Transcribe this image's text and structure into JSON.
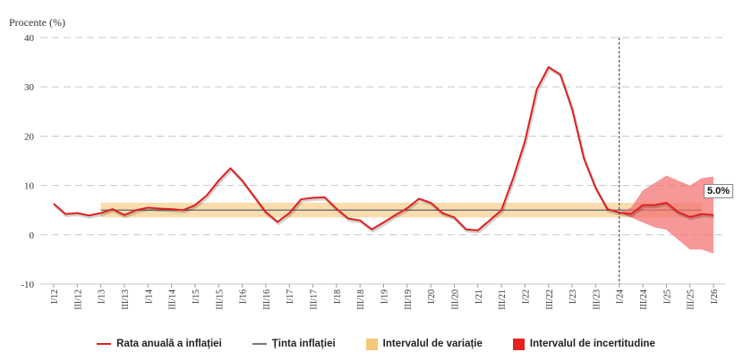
{
  "chart_data": {
    "type": "line",
    "ylabel": "Procente (%)",
    "ylim": [
      -10,
      40
    ],
    "yticks": [
      -10,
      0,
      10,
      20,
      30,
      40
    ],
    "grid": true,
    "legend_position": "bottom",
    "x_labels": [
      "I/12",
      "III/12",
      "I/13",
      "III/13",
      "I/14",
      "III/14",
      "I/15",
      "III/15",
      "I/16",
      "III/16",
      "I/17",
      "III/17",
      "I/18",
      "III/18",
      "I/19",
      "III/19",
      "I/20",
      "III/20",
      "I/21",
      "III/21",
      "I/22",
      "III/22",
      "I/23",
      "III/23",
      "I/24",
      "III/24",
      "I/25",
      "III/25",
      "I/26"
    ],
    "forecast_start": "I/24",
    "series": [
      {
        "name": "Rata anuală a inflației",
        "color": "#e02020",
        "x": [
          "I/12",
          "II/12",
          "III/12",
          "IV/12",
          "I/13",
          "II/13",
          "III/13",
          "IV/13",
          "I/14",
          "II/14",
          "III/14",
          "IV/14",
          "I/15",
          "II/15",
          "III/15",
          "IV/15",
          "I/16",
          "II/16",
          "III/16",
          "IV/16",
          "I/17",
          "II/17",
          "III/17",
          "IV/17",
          "I/18",
          "II/18",
          "III/18",
          "IV/18",
          "I/19",
          "II/19",
          "III/19",
          "IV/19",
          "I/20",
          "II/20",
          "III/20",
          "IV/20",
          "I/21",
          "II/21",
          "III/21",
          "IV/21",
          "I/22",
          "II/22",
          "III/22",
          "IV/22",
          "I/23",
          "II/23",
          "III/23",
          "IV/23",
          "I/24",
          "II/24",
          "III/24",
          "IV/24",
          "I/25",
          "II/25",
          "III/25",
          "IV/25",
          "I/26"
        ],
        "values": [
          6.3,
          4.2,
          4.4,
          3.9,
          4.4,
          5.2,
          4.0,
          5.0,
          5.5,
          5.3,
          5.2,
          5.0,
          6.0,
          8.0,
          11.0,
          13.5,
          11.0,
          7.8,
          4.6,
          2.6,
          4.4,
          7.2,
          7.5,
          7.6,
          5.3,
          3.3,
          2.9,
          1.1,
          2.5,
          4.0,
          5.4,
          7.3,
          6.5,
          4.4,
          3.5,
          1.1,
          0.9,
          2.9,
          5.0,
          11.5,
          19.0,
          29.5,
          34.0,
          32.5,
          25.5,
          15.5,
          9.5,
          5.2,
          4.5,
          4.2,
          6.0,
          6.0,
          6.5,
          4.6,
          3.6,
          4.2,
          4.0
        ]
      },
      {
        "name": "Ținta inflației",
        "color": "#777777",
        "value": 5.0
      }
    ],
    "target_range": {
      "name": "Intervalul de variație",
      "color": "#f5c77a",
      "lower": 3.5,
      "upper": 6.5,
      "from": "I/13",
      "to": "IV/25"
    },
    "uncertainty": {
      "name": "Intervalul de incertitudine",
      "color": "#f26c6c",
      "x": [
        "I/24",
        "II/24",
        "III/24",
        "IV/24",
        "I/25",
        "II/25",
        "III/25",
        "IV/25",
        "I/26"
      ],
      "lower": [
        4.5,
        3.5,
        2.5,
        1.5,
        1.0,
        -1.0,
        -3.0,
        -3.0,
        -3.8
      ],
      "upper": [
        4.5,
        5.5,
        9.0,
        10.5,
        12.0,
        11.0,
        10.0,
        11.5,
        11.8
      ]
    },
    "annotations": [
      {
        "text": "5.0%"
      }
    ]
  }
}
